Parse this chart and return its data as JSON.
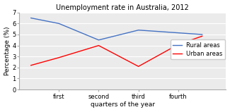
{
  "title": "Unemployment rate in Australia, 2012",
  "xlabel": "quarters of the year",
  "ylabel": "Percentage (%)",
  "x_labels": [
    "first",
    "second",
    "third",
    "fourth"
  ],
  "x_values": [
    1,
    2,
    3,
    4
  ],
  "rural": [
    6.5,
    4.5,
    4.6,
    5.2,
    5.1
  ],
  "urban": [
    2.2,
    4.0,
    2.1,
    4.1,
    4.85
  ],
  "rural_x": [
    0.3,
    1,
    2,
    3,
    4,
    4.6
  ],
  "rural_y": [
    6.5,
    6.0,
    4.5,
    5.4,
    5.15,
    5.0
  ],
  "urban_x": [
    0.3,
    1,
    2,
    3,
    4,
    4.6
  ],
  "urban_y": [
    2.2,
    2.9,
    4.0,
    2.1,
    4.1,
    4.85
  ],
  "ylim": [
    0,
    7
  ],
  "yticks": [
    0,
    1,
    2,
    3,
    4,
    5,
    6,
    7
  ],
  "rural_color": "#4472C4",
  "urban_color": "#FF0000",
  "legend_labels": [
    "Rural areas",
    "Urban areas"
  ],
  "bg_color": "#EBEBEB",
  "title_fontsize": 7,
  "axis_fontsize": 6.5,
  "tick_fontsize": 6,
  "legend_fontsize": 6
}
